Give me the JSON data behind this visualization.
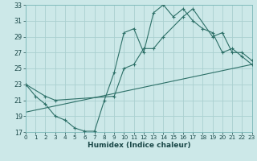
{
  "xlabel": "Humidex (Indice chaleur)",
  "bg_color": "#cce8e8",
  "grid_color": "#aad0d0",
  "line_color": "#2d7068",
  "xlim": [
    0,
    23
  ],
  "ylim": [
    17,
    33
  ],
  "yticks": [
    17,
    19,
    21,
    23,
    25,
    27,
    29,
    31,
    33
  ],
  "xticks": [
    0,
    1,
    2,
    3,
    4,
    5,
    6,
    7,
    8,
    9,
    10,
    11,
    12,
    13,
    14,
    15,
    16,
    17,
    18,
    19,
    20,
    21,
    22,
    23
  ],
  "curve1_x": [
    0,
    1,
    2,
    3,
    4,
    5,
    6,
    7,
    8,
    9,
    10,
    11,
    12,
    13,
    14,
    15,
    16,
    17,
    18,
    19,
    20,
    21,
    22,
    23
  ],
  "curve1_y": [
    23,
    21.5,
    20.5,
    19.0,
    18.5,
    17.5,
    17.1,
    17.1,
    21.0,
    24.5,
    29.5,
    30.0,
    27.0,
    32.0,
    33.0,
    31.5,
    32.5,
    31.0,
    30.0,
    29.5,
    27.0,
    27.5,
    26.5,
    25.5
  ],
  "curve2_x": [
    0,
    2,
    3,
    9,
    10,
    11,
    12,
    13,
    14,
    16,
    17,
    19,
    20,
    21,
    22,
    23
  ],
  "curve2_y": [
    23,
    21.5,
    21.0,
    21.5,
    25.0,
    25.5,
    27.5,
    27.5,
    29.0,
    31.5,
    32.5,
    29.0,
    29.5,
    27.0,
    27.0,
    26.0
  ],
  "line3_x": [
    0,
    23
  ],
  "line3_y": [
    19.5,
    25.5
  ]
}
